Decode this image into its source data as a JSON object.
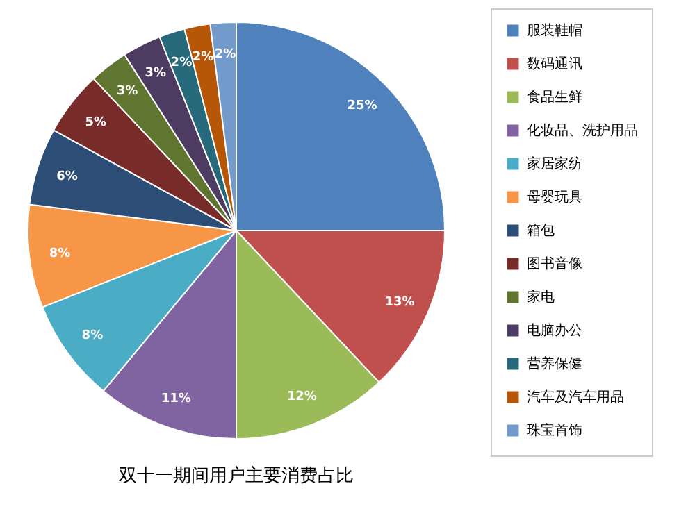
{
  "chart_data": {
    "type": "pie",
    "title": "双十一期间用户主要消费占比",
    "categories": [
      "服装鞋帽",
      "数码通讯",
      "食品生鲜",
      "化妆品、洗护用品",
      "家居家纺",
      "母婴玩具",
      "箱包",
      "图书音像",
      "家电",
      "电脑办公",
      "营养保健",
      "汽车及汽车用品",
      "珠宝首饰"
    ],
    "values": [
      25,
      13,
      12,
      11,
      8,
      8,
      6,
      5,
      3,
      3,
      2,
      2,
      2
    ],
    "value_labels": [
      "25%",
      "13%",
      "12%",
      "11%",
      "8%",
      "8%",
      "6%",
      "5%",
      "3%",
      "3%",
      "2%",
      "2%",
      "2%"
    ],
    "colors": [
      "#4f81bd",
      "#c0504d",
      "#9bbb59",
      "#8064a2",
      "#4bacc6",
      "#f79646",
      "#2c4d75",
      "#772c2a",
      "#5f7530",
      "#4d3b62",
      "#276a7c",
      "#b65708",
      "#729aca"
    ],
    "legend": "right"
  }
}
